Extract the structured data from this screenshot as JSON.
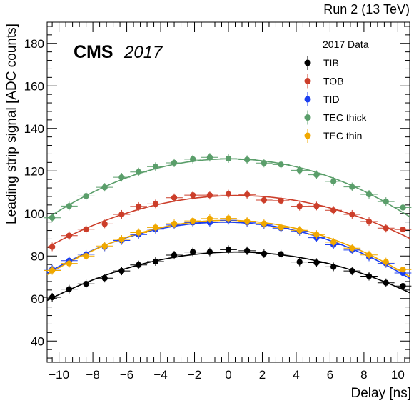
{
  "header": {
    "run_label": "Run 2 (13 TeV)"
  },
  "branding": {
    "experiment": "CMS",
    "year": "2017"
  },
  "chart_data": {
    "type": "scatter",
    "xlabel": "Delay [ns]",
    "ylabel": "Leading strip signal [ADC counts]",
    "xlim": [
      -10.7,
      10.7
    ],
    "ylim": [
      30,
      190
    ],
    "x_ticks": [
      -10,
      -8,
      -6,
      -4,
      -2,
      0,
      2,
      4,
      6,
      8,
      10
    ],
    "x_tick_labels": [
      "−10",
      "−8",
      "−6",
      "−4",
      "−2",
      "0",
      "2",
      "4",
      "6",
      "8",
      "10"
    ],
    "y_ticks": [
      40,
      60,
      80,
      100,
      120,
      140,
      160,
      180
    ],
    "y_tick_labels": [
      "40",
      "60",
      "80",
      "100",
      "120",
      "140",
      "160",
      "180"
    ],
    "grid": false,
    "legend": {
      "title": "2017 Data",
      "position": "top-right"
    },
    "x_error": 0.5,
    "series": [
      {
        "name": "TIB",
        "color": "#000000",
        "fit": true,
        "x": [
          -10.4,
          -9.4,
          -8.4,
          -7.3,
          -6.3,
          -5.3,
          -4.3,
          -3.2,
          -2.1,
          -1.1,
          0.0,
          1.1,
          2.1,
          3.1,
          4.2,
          5.2,
          6.2,
          7.3,
          8.3,
          9.3,
          10.3
        ],
        "y": [
          60.6,
          64.4,
          66.9,
          69.6,
          73.0,
          75.8,
          77.4,
          80.4,
          81.9,
          81.9,
          83.0,
          82.5,
          81.1,
          80.9,
          77.2,
          76.9,
          74.9,
          73.0,
          70.5,
          67.4,
          65.9
        ]
      },
      {
        "name": "TOB",
        "color": "#cc3e2a",
        "fit": true,
        "x": [
          -10.4,
          -9.4,
          -8.4,
          -7.3,
          -6.3,
          -5.3,
          -4.3,
          -3.2,
          -2.1,
          -1.1,
          0.0,
          1.1,
          2.1,
          3.1,
          4.2,
          5.2,
          6.2,
          7.3,
          8.3,
          9.3,
          10.3
        ],
        "y": [
          84.3,
          89.6,
          92.6,
          95.1,
          99.6,
          103.3,
          104.5,
          107.4,
          108.6,
          108.6,
          109.1,
          108.9,
          106.3,
          106.0,
          103.4,
          103.5,
          101.5,
          99.6,
          96.2,
          93.1,
          92.5
        ]
      },
      {
        "name": "TID",
        "color": "#1c3ff0",
        "fit": true,
        "x": [
          -10.4,
          -9.4,
          -8.4,
          -7.3,
          -6.3,
          -5.3,
          -4.3,
          -3.2,
          -2.1,
          -1.1,
          0.0,
          1.1,
          2.1,
          3.1,
          4.2,
          5.2,
          6.2,
          7.3,
          8.3,
          9.3,
          10.3
        ],
        "y": [
          73.8,
          77.8,
          80.8,
          84.3,
          87.3,
          90.1,
          92.6,
          94.6,
          95.8,
          95.8,
          96.8,
          95.8,
          94.8,
          93.1,
          91.6,
          88.6,
          85.3,
          82.8,
          79.6,
          76.5,
          72.0
        ]
      },
      {
        "name": "TEC thick",
        "color": "#5a9e6a",
        "fit": true,
        "x": [
          -10.4,
          -9.4,
          -8.4,
          -7.3,
          -6.3,
          -5.3,
          -4.3,
          -3.2,
          -2.1,
          -1.1,
          0.0,
          1.1,
          2.1,
          3.1,
          4.2,
          5.2,
          6.2,
          7.3,
          8.3,
          9.3,
          10.3
        ],
        "y": [
          98.0,
          103.5,
          108.2,
          112.3,
          117.0,
          119.5,
          122.0,
          123.8,
          125.5,
          126.4,
          125.8,
          125.3,
          123.7,
          123.0,
          120.3,
          118.2,
          115.1,
          112.5,
          109.0,
          105.6,
          102.8
        ]
      },
      {
        "name": "TEC thin",
        "color": "#f0a800",
        "fit": true,
        "x": [
          -10.4,
          -9.4,
          -8.4,
          -7.3,
          -6.3,
          -5.3,
          -4.3,
          -3.2,
          -2.1,
          -1.1,
          0.0,
          1.1,
          2.1,
          3.1,
          4.2,
          5.2,
          6.2,
          7.3,
          8.3,
          9.3,
          10.3
        ],
        "y": [
          73.2,
          76.5,
          80.0,
          84.7,
          87.8,
          91.0,
          93.4,
          95.2,
          96.5,
          97.6,
          97.7,
          96.4,
          95.3,
          93.4,
          92.1,
          90.1,
          86.5,
          83.7,
          80.5,
          77.2,
          73.6
        ]
      }
    ]
  }
}
